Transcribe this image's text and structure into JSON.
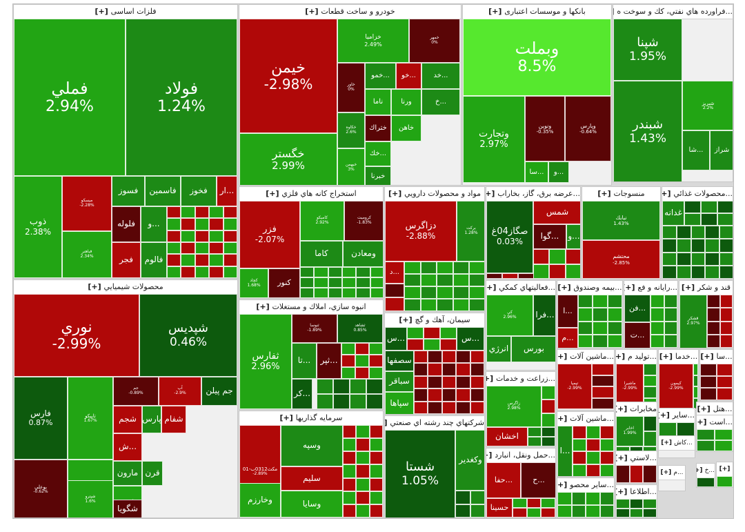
{
  "colors": {
    "strong_up": "#1d8a16",
    "up": "#22a514",
    "bright_up": "#56e82e",
    "dark_up": "#0d5a0d",
    "down": "#b00808",
    "dark_down": "#5a0506",
    "sector_bg": "#f0f0f0"
  },
  "chart_data": {
    "type": "treemap",
    "plus_label": "[+]",
    "sectors": [
      {
        "name": "فلزات اساسی",
        "tiles": [
          {
            "symbol": "فملي",
            "change": "2.94%"
          },
          {
            "symbol": "فولاد",
            "change": "1.24%"
          },
          {
            "symbol": "ذوب",
            "change": "2.38%"
          },
          {
            "symbol": "ميسكو",
            "change": "-2.28%"
          },
          {
            "symbol": "فباهنر",
            "change": "2.34%"
          },
          {
            "symbol": "فسوز",
            "change": ""
          },
          {
            "symbol": "فاسمين",
            "change": ""
          },
          {
            "symbol": "فخوز",
            "change": ""
          },
          {
            "symbol": "...ار",
            "change": ""
          },
          {
            "symbol": "فلوله",
            "change": ""
          },
          {
            "symbol": "فجر",
            "change": ""
          },
          {
            "symbol": "...و",
            "change": ""
          },
          {
            "symbol": "فالوم",
            "change": ""
          }
        ]
      },
      {
        "name": "خودرو و ساخت قطعات",
        "tiles": [
          {
            "symbol": "خيمن",
            "change": "-2.98%"
          },
          {
            "symbol": "خگستر",
            "change": "2.99%"
          },
          {
            "symbol": "خزاميا",
            "change": "2.49%"
          },
          {
            "symbol": "خمهر",
            "change": "0%"
          },
          {
            "symbol": "خاور",
            "change": "0%"
          },
          {
            "symbol": "...خمو",
            "change": ""
          },
          {
            "symbol": "...خو",
            "change": ""
          },
          {
            "symbol": "...خد",
            "change": ""
          },
          {
            "symbol": "ناما",
            "change": ""
          },
          {
            "symbol": "ورنا",
            "change": ""
          },
          {
            "symbol": "...خ",
            "change": ""
          },
          {
            "symbol": "خاهن",
            "change": ""
          },
          {
            "symbol": "ختراك",
            "change": ""
          },
          {
            "symbol": "خكاوه",
            "change": "2.6%"
          },
          {
            "symbol": "...خك",
            "change": ""
          },
          {
            "symbol": "خبهمن",
            "change": "3%"
          },
          {
            "symbol": "خبرنا",
            "change": ""
          }
        ]
      },
      {
        "name": "بانکها و موسسات اعتباری",
        "tiles": [
          {
            "symbol": "وبملت",
            "change": "8.5%"
          },
          {
            "symbol": "وتجارت",
            "change": "2.97%"
          },
          {
            "symbol": "ونوين",
            "change": "-0.35%"
          },
          {
            "symbol": "وپارس",
            "change": "-0.64%"
          },
          {
            "symbol": "...سا",
            "change": ""
          },
          {
            "symbol": "...و",
            "change": ""
          }
        ]
      },
      {
        "name": "...فراورده هاي نفتي، كك و سوخت ه",
        "tiles": [
          {
            "symbol": "شپنا",
            "change": "1.95%"
          },
          {
            "symbol": "شبندر",
            "change": "1.43%"
          },
          {
            "symbol": "شبريز",
            "change": "2.2%"
          },
          {
            "symbol": "...شا",
            "change": ""
          },
          {
            "symbol": "شراز",
            "change": ""
          }
        ]
      },
      {
        "name": "محصولات شيميايي",
        "tiles": [
          {
            "symbol": "نوري",
            "change": "-2.99%"
          },
          {
            "symbol": "شپديس",
            "change": "0.46%"
          },
          {
            "symbol": "فارس",
            "change": "0.87%"
          },
          {
            "symbol": "تاپيكو",
            "change": "1.67%"
          },
          {
            "symbol": "پارسان",
            "change": "2.53%"
          },
          {
            "symbol": "بوعلي",
            "change": "-0.62%"
          },
          {
            "symbol": "شپترو",
            "change": "1.6%"
          },
          {
            "symbol": "جم",
            "change": "-0.89%"
          },
          {
            "symbol": "آپ",
            "change": "-2.9%"
          },
          {
            "symbol": "جم پيلن",
            "change": ""
          },
          {
            "symbol": "شجم",
            "change": ""
          },
          {
            "symbol": "پارس",
            "change": ""
          },
          {
            "symbol": "شفام",
            "change": ""
          },
          {
            "symbol": "...ش",
            "change": ""
          },
          {
            "symbol": "مارون",
            "change": ""
          },
          {
            "symbol": "قرن",
            "change": ""
          },
          {
            "symbol": "شفن",
            "change": ""
          },
          {
            "symbol": "شگويا",
            "change": ""
          }
        ]
      },
      {
        "name": "استخراج كانه هاي فلزي",
        "tiles": [
          {
            "symbol": "فزر",
            "change": "-2.07%"
          },
          {
            "symbol": "كچاد",
            "change": "1.68%"
          },
          {
            "symbol": "كنور",
            "change": ""
          },
          {
            "symbol": "كاميكو",
            "change": "2.92%"
          },
          {
            "symbol": "كروميت",
            "change": "-1.83%"
          },
          {
            "symbol": "كاما",
            "change": ""
          },
          {
            "symbol": "ومعادن",
            "change": ""
          }
        ]
      },
      {
        "name": "مواد و محصولات دارويي",
        "tiles": [
          {
            "symbol": "دزاگرس",
            "change": "-2.88%"
          },
          {
            "symbol": "بركت",
            "change": "1.28%"
          },
          {
            "symbol": "...د",
            "change": ""
          }
        ]
      },
      {
        "name": "...عرضه برق، گاز، بخاراب",
        "tiles": [
          {
            "symbol": "صگاز04غ",
            "change": "0.03%"
          },
          {
            "symbol": "شمس",
            "change": ""
          },
          {
            "symbol": "...گوا",
            "change": ""
          },
          {
            "symbol": "...و",
            "change": ""
          }
        ]
      },
      {
        "name": "منسوجات",
        "tiles": [
          {
            "symbol": "نبابك",
            "change": "1.43%"
          },
          {
            "symbol": "محتشم",
            "change": "-2.85%"
          }
        ]
      },
      {
        "name": "...محصولات غذائي",
        "tiles": [
          {
            "symbol": "غدانه",
            "change": ""
          }
        ]
      },
      {
        "name": "انبوه سازي، املاك و مستغلات",
        "tiles": [
          {
            "symbol": "ثفارس",
            "change": "2.96%"
          },
          {
            "symbol": "ثنوسا",
            "change": "-1.89%"
          },
          {
            "symbol": "ثشاهد",
            "change": "0.85%"
          },
          {
            "symbol": "...تا",
            "change": ""
          },
          {
            "symbol": "...ثپر",
            "change": ""
          },
          {
            "symbol": "...كر",
            "change": ""
          }
        ]
      },
      {
        "name": "سيمان، آهك و گچ",
        "tiles": [
          {
            "symbol": "...س",
            "change": ""
          },
          {
            "symbol": "...س",
            "change": ""
          },
          {
            "symbol": "سصفها",
            "change": ""
          },
          {
            "symbol": "سباقر",
            "change": ""
          },
          {
            "symbol": "سپاها",
            "change": ""
          }
        ]
      },
      {
        "name": "...فعاليتهاي كمكي",
        "tiles": [
          {
            "symbol": "كي",
            "change": "2.96%"
          },
          {
            "symbol": "...فرا",
            "change": ""
          },
          {
            "symbol": "بورس",
            "change": ""
          },
          {
            "symbol": "انرژي",
            "change": ""
          }
        ]
      },
      {
        "name": "...بيمه وصندوق",
        "tiles": [
          {
            "symbol": "...ا",
            "change": ""
          },
          {
            "symbol": "...م",
            "change": ""
          }
        ]
      },
      {
        "name": "...رايانه و فع",
        "tiles": [
          {
            "symbol": "...فن",
            "change": ""
          },
          {
            "symbol": "...ت",
            "change": ""
          }
        ]
      },
      {
        "name": "قند و شكر",
        "tiles": [
          {
            "symbol": "قشكر",
            "change": "2.97%"
          }
        ]
      },
      {
        "name": "سرمايه گذاريها",
        "tiles": [
          {
            "symbol": "مكث0312ب-01",
            "change": "-2.89%"
          },
          {
            "symbol": "وسپه",
            "change": ""
          },
          {
            "symbol": "سليم",
            "change": ""
          },
          {
            "symbol": "وخارزم",
            "change": ""
          },
          {
            "symbol": "وسايا",
            "change": ""
          }
        ]
      },
      {
        "name": "شركتهاي چند رشته اي صنعتي",
        "tiles": [
          {
            "symbol": "شستا",
            "change": "1.05%"
          },
          {
            "symbol": "وكغدير",
            "change": ""
          }
        ]
      },
      {
        "name": "...زراعت و خدمات",
        "tiles": [
          {
            "symbol": "زاگرس",
            "change": "2.98%"
          },
          {
            "symbol": "اخشان",
            "change": ""
          }
        ]
      },
      {
        "name": "...حمل ونقل، انبارد",
        "tiles": [
          {
            "symbol": "...حفا",
            "change": ""
          },
          {
            "symbol": "...ح",
            "change": ""
          },
          {
            "symbol": "حسينا",
            "change": ""
          }
        ]
      },
      {
        "name": "...ماشين آلات",
        "tiles": [
          {
            "symbol": "تپمپا",
            "change": "-2.99%"
          }
        ]
      },
      {
        "name": "...توليد م",
        "tiles": [
          {
            "symbol": "ماشيرا",
            "change": "-2.99%"
          }
        ]
      },
      {
        "name": "...خدما",
        "tiles": [
          {
            "symbol": "كيمون",
            "change": "-2.99%"
          }
        ]
      },
      {
        "name": "...سا",
        "tiles": []
      },
      {
        "name": "...ماشين آلات",
        "tiles": [
          {
            "symbol": "...ا",
            "change": ""
          }
        ]
      },
      {
        "name": "مخابرات",
        "tiles": [
          {
            "symbol": "اخابر",
            "change": "1.99%"
          }
        ]
      },
      {
        "name": "...ساير",
        "tiles": []
      },
      {
        "name": "...هتل",
        "tiles": []
      },
      {
        "name": "...كاش",
        "tiles": []
      },
      {
        "name": "...است",
        "tiles": []
      },
      {
        "name": "...ساير محصو",
        "tiles": []
      },
      {
        "name": "...لاستي",
        "tiles": []
      },
      {
        "name": "...م",
        "tiles": []
      },
      {
        "name": "...خ",
        "tiles": []
      },
      {
        "name": "...اطلاعا",
        "tiles": []
      },
      {
        "name": "",
        "tiles": []
      }
    ]
  }
}
